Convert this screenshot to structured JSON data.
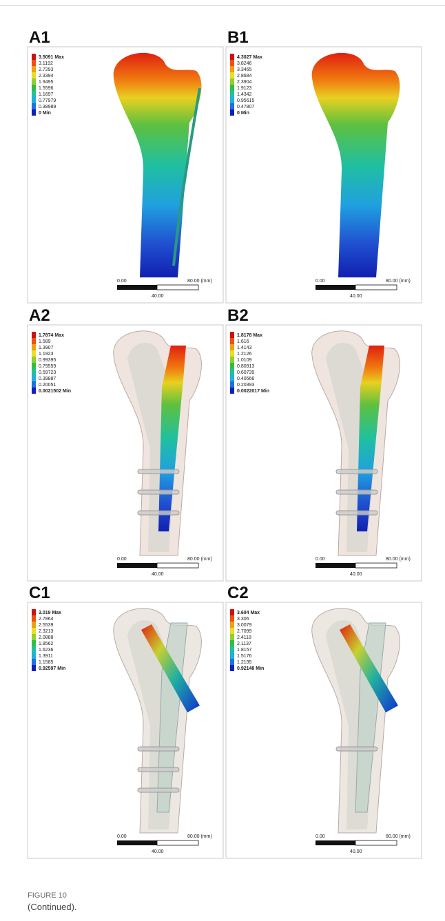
{
  "panels": [
    {
      "label": "A1",
      "legend": [
        "3.5091 Max",
        "3.1192",
        "2.7293",
        "2.3394",
        "1.9495",
        "1.5596",
        "1.1697",
        "0.77979",
        "0.38989",
        "0 Min"
      ],
      "scale": {
        "start": "0.00",
        "end": "80.00 (mm)",
        "mid": "40.00"
      }
    },
    {
      "label": "B1",
      "legend": [
        "4.3027 Max",
        "3.8246",
        "3.3465",
        "2.8684",
        "2.3904",
        "1.9123",
        "1.4342",
        "0.95615",
        "0.47807",
        "0 Min"
      ],
      "scale": {
        "start": "0.00",
        "end": "80.00 (mm)",
        "mid": "40.00"
      }
    },
    {
      "label": "A2",
      "legend": [
        "1.7874 Max",
        "1.589",
        "1.3907",
        "1.1923",
        "0.99395",
        "0.79559",
        "0.59723",
        "0.39887",
        "0.20051",
        "0.0021502 Min"
      ],
      "scale": {
        "start": "0.00",
        "end": "80.00 (mm)",
        "mid": "40.00"
      }
    },
    {
      "label": "B2",
      "legend": [
        "1.8178 Max",
        "1.616",
        "1.4143",
        "1.2126",
        "1.0109",
        "0.80913",
        "0.60739",
        "0.40566",
        "0.20393",
        "0.0022017 Min"
      ],
      "scale": {
        "start": "0.00",
        "end": "80.00 (mm)",
        "mid": "40.00"
      }
    },
    {
      "label": "C1",
      "legend": [
        "3.019 Max",
        "2.7864",
        "2.5539",
        "2.3213",
        "2.0888",
        "1.8562",
        "1.6236",
        "1.3911",
        "1.1585",
        "0.92597 Min"
      ],
      "scale": {
        "start": "0.00",
        "end": "80.00 (mm)",
        "mid": "40.00"
      }
    },
    {
      "label": "C2",
      "legend": [
        "3.604 Max",
        "3.306",
        "3.0079",
        "2.7099",
        "2.4118",
        "2.1137",
        "1.8157",
        "1.5176",
        "1.2195",
        "0.92148 Min"
      ],
      "scale": {
        "start": "0.00",
        "end": "80.00 (mm)",
        "mid": "40.00"
      }
    }
  ],
  "caption": {
    "figure": "FIGURE 10",
    "text": "(Continued)."
  }
}
